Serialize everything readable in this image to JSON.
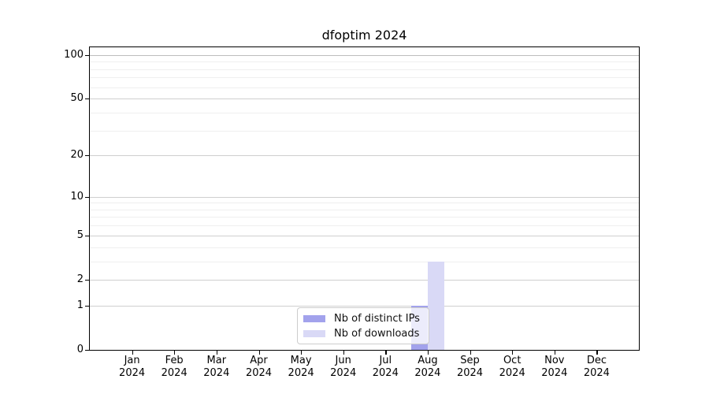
{
  "title": "dfoptim 2024",
  "chart_data": {
    "type": "bar",
    "title": "dfoptim 2024",
    "categories": [
      "Jan",
      "Feb",
      "Mar",
      "Apr",
      "May",
      "Jun",
      "Jul",
      "Aug",
      "Sep",
      "Oct",
      "Nov",
      "Dec"
    ],
    "year_label": "2024",
    "series": [
      {
        "name": "Nb of distinct IPs",
        "color": "#a2a2ec",
        "values": [
          0,
          0,
          0,
          0,
          0,
          0,
          0,
          1,
          0,
          0,
          0,
          0
        ]
      },
      {
        "name": "Nb of downloads",
        "color": "#d9d9f6",
        "values": [
          0,
          0,
          0,
          0,
          0,
          0,
          0,
          3,
          0,
          0,
          0,
          0
        ]
      }
    ],
    "xlabel": "",
    "ylabel": "",
    "yscale": "log1p",
    "ylim": [
      0,
      113
    ],
    "y_major_ticks": [
      0,
      1,
      2,
      5,
      10,
      20,
      50,
      100
    ],
    "y_minor_ticks": [
      3,
      4,
      6,
      7,
      8,
      9,
      30,
      40,
      60,
      70,
      80,
      90
    ],
    "grid": true,
    "legend_position": "lower center",
    "colors": {
      "major_grid": "#cfcfcf",
      "minor_grid": "#efefef",
      "grid_100": "#bdbdbd",
      "axis": "#000000",
      "text": "#000000",
      "background": "#ffffff"
    }
  }
}
